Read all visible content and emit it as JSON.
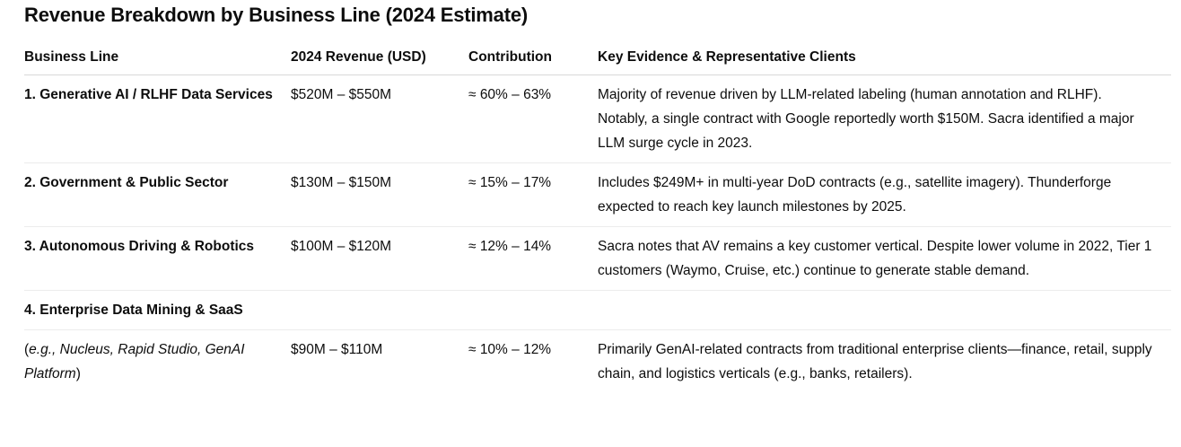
{
  "title": "Revenue Breakdown by Business Line (2024 Estimate)",
  "table": {
    "headers": [
      "Business Line",
      "2024 Revenue (USD)",
      "Contribution",
      "Key Evidence & Representative Clients"
    ],
    "rows": [
      {
        "business_line": "1. Generative AI / RLHF Data Services",
        "revenue": "$520M – $550M",
        "contribution": "≈ 60% – 63%",
        "evidence": "Majority of revenue driven by LLM-related labeling (human annotation and RLHF). Notably, a single contract with Google reportedly worth $150M. Sacra identified a major LLM surge cycle in 2023."
      },
      {
        "business_line": "2. Government & Public Sector",
        "revenue": "$130M – $150M",
        "contribution": "≈ 15% – 17%",
        "evidence": "Includes $249M+ in multi-year DoD contracts (e.g., satellite imagery). Thunderforge expected to reach key launch milestones by 2025."
      },
      {
        "business_line": "3. Autonomous Driving & Robotics",
        "revenue": "$100M – $120M",
        "contribution": "≈ 12% – 14%",
        "evidence": "Sacra notes that AV remains a key customer vertical. Despite lower volume in 2022, Tier 1 customers (Waymo, Cruise, etc.) continue to generate stable demand."
      },
      {
        "business_line": "4. Enterprise Data Mining & SaaS",
        "revenue": "",
        "contribution": "",
        "evidence": ""
      },
      {
        "business_line_open": "(",
        "business_line": "e.g., Nucleus, Rapid Studio, GenAI Platform",
        "business_line_close": ")",
        "revenue": "$90M – $110M",
        "contribution": "≈ 10% – 12%",
        "evidence": "Primarily GenAI-related contracts from traditional enterprise clients—finance, retail, supply chain, and logistics verticals (e.g., banks, retailers)."
      }
    ]
  }
}
